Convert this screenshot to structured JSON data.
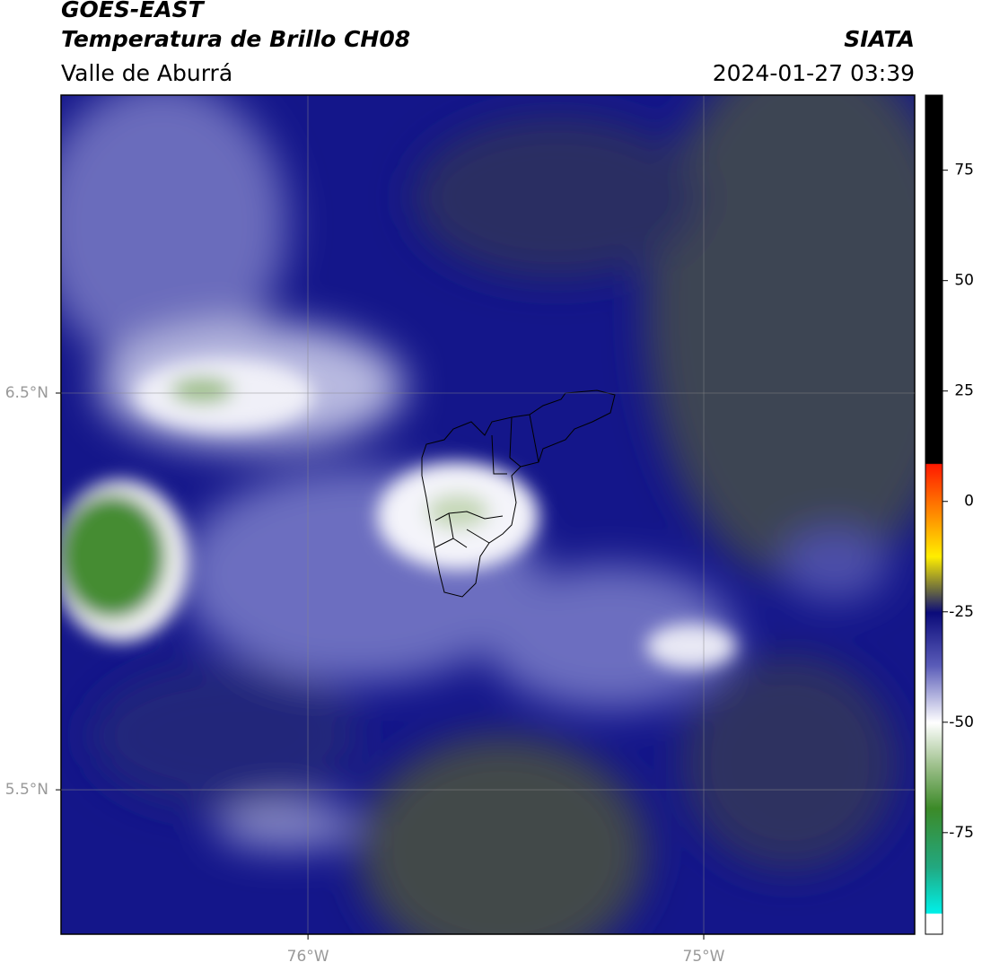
{
  "header": {
    "title": "GOES-EAST",
    "subtitle": "Temperatura de Brillo CH08",
    "region": "Valle de Aburrá",
    "source": "SIATA",
    "datetime": "2024-01-27 03:39"
  },
  "map": {
    "lat_lim": [
      5.136,
      7.251
    ],
    "lon_lim": [
      -76.624,
      -74.467
    ],
    "lat_ticks": [
      {
        "value": 6.5,
        "label": "6.5°N"
      },
      {
        "value": 5.5,
        "label": "5.5°N"
      }
    ],
    "lon_ticks": [
      {
        "value": -76,
        "label": "76°W"
      },
      {
        "value": -75,
        "label": "75°W"
      }
    ],
    "grid": true
  },
  "colorbar": {
    "lim": [
      -98,
      92
    ],
    "ticks": [
      75,
      50,
      25,
      0,
      -25,
      -50,
      -75
    ]
  }
}
